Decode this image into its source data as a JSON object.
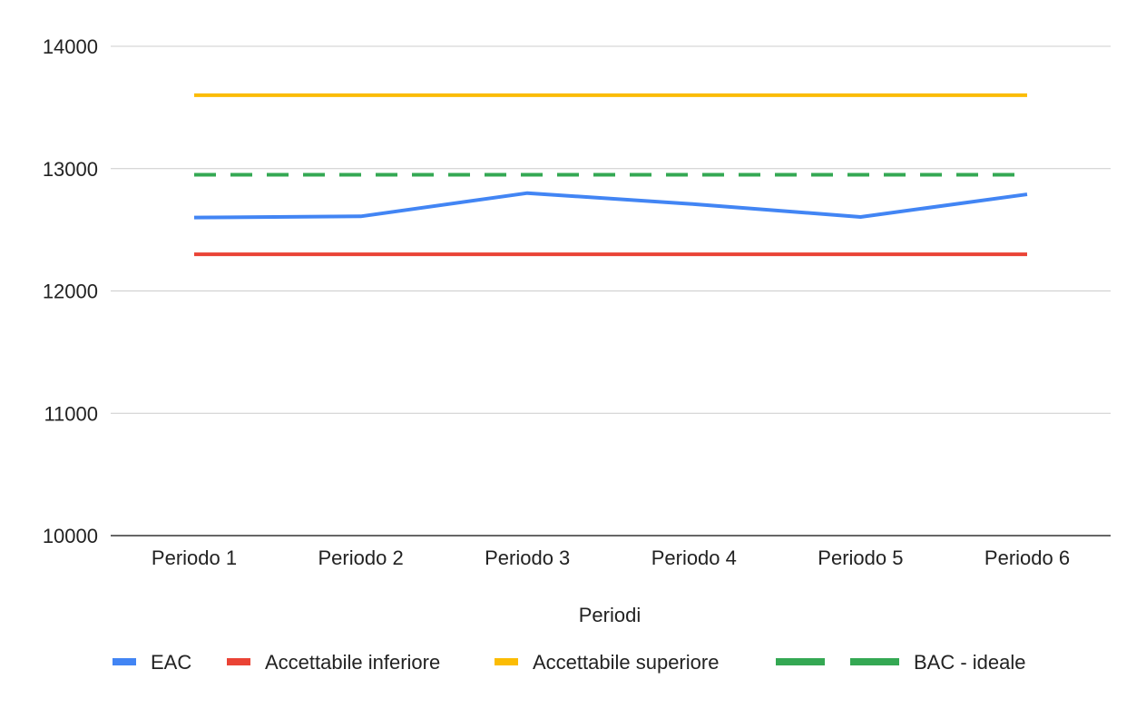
{
  "chart_data": {
    "type": "line",
    "title": "",
    "xlabel": "Periodi",
    "ylabel": "",
    "categories": [
      "Periodo 1",
      "Periodo 2",
      "Periodo 3",
      "Periodo 4",
      "Periodo 5",
      "Periodo 6"
    ],
    "ylim": [
      10000,
      14000
    ],
    "yticks": [
      "10000",
      "11000",
      "12000",
      "13000",
      "14000"
    ],
    "grid": true,
    "legend_position": "bottom",
    "series": [
      {
        "name": "EAC",
        "values": [
          12600,
          12610,
          12800,
          12710,
          12605,
          12790
        ],
        "color": "#4285F4",
        "dash": "solid"
      },
      {
        "name": "Accettabile inferiore",
        "values": [
          12300,
          12300,
          12300,
          12300,
          12300,
          12300
        ],
        "color": "#EA4335",
        "dash": "solid"
      },
      {
        "name": "Accettabile superiore",
        "values": [
          13600,
          13600,
          13600,
          13600,
          13600,
          13600
        ],
        "color": "#FBBC04",
        "dash": "solid"
      },
      {
        "name": "BAC - ideale",
        "values": [
          12950,
          12950,
          12950,
          12950,
          12950,
          12950
        ],
        "color": "#34A853",
        "dash": "dashed"
      }
    ]
  }
}
